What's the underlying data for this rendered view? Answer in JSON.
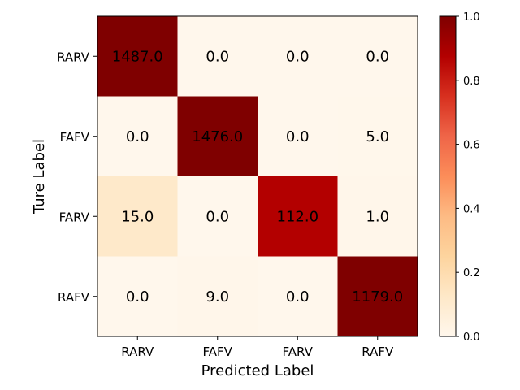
{
  "chart_data": {
    "type": "heatmap",
    "title": "",
    "xlabel": "Predicted Label",
    "ylabel": "Ture Label",
    "x_categories": [
      "RARV",
      "FAFV",
      "FARV",
      "RAFV"
    ],
    "y_categories": [
      "RARV",
      "FAFV",
      "FARV",
      "RAFV"
    ],
    "cell_labels": [
      [
        "1487.0",
        "0.0",
        "0.0",
        "0.0"
      ],
      [
        "0.0",
        "1476.0",
        "0.0",
        "5.0"
      ],
      [
        "15.0",
        "0.0",
        "112.0",
        "1.0"
      ],
      [
        "0.0",
        "9.0",
        "0.0",
        "1179.0"
      ]
    ],
    "normalized_values": [
      [
        1.0,
        0.0,
        0.0,
        0.0
      ],
      [
        0.0,
        1.0,
        0.0,
        0.003
      ],
      [
        0.117,
        0.0,
        0.875,
        0.008
      ],
      [
        0.0,
        0.008,
        0.0,
        1.0
      ]
    ],
    "colormap": "OrRd",
    "colorbar": {
      "range": [
        0.0,
        1.0
      ],
      "ticks": [
        0.0,
        0.2,
        0.4,
        0.6,
        0.8,
        1.0
      ],
      "tick_labels": [
        "0.0",
        "0.2",
        "0.4",
        "0.6",
        "0.8",
        "1.0"
      ]
    }
  }
}
